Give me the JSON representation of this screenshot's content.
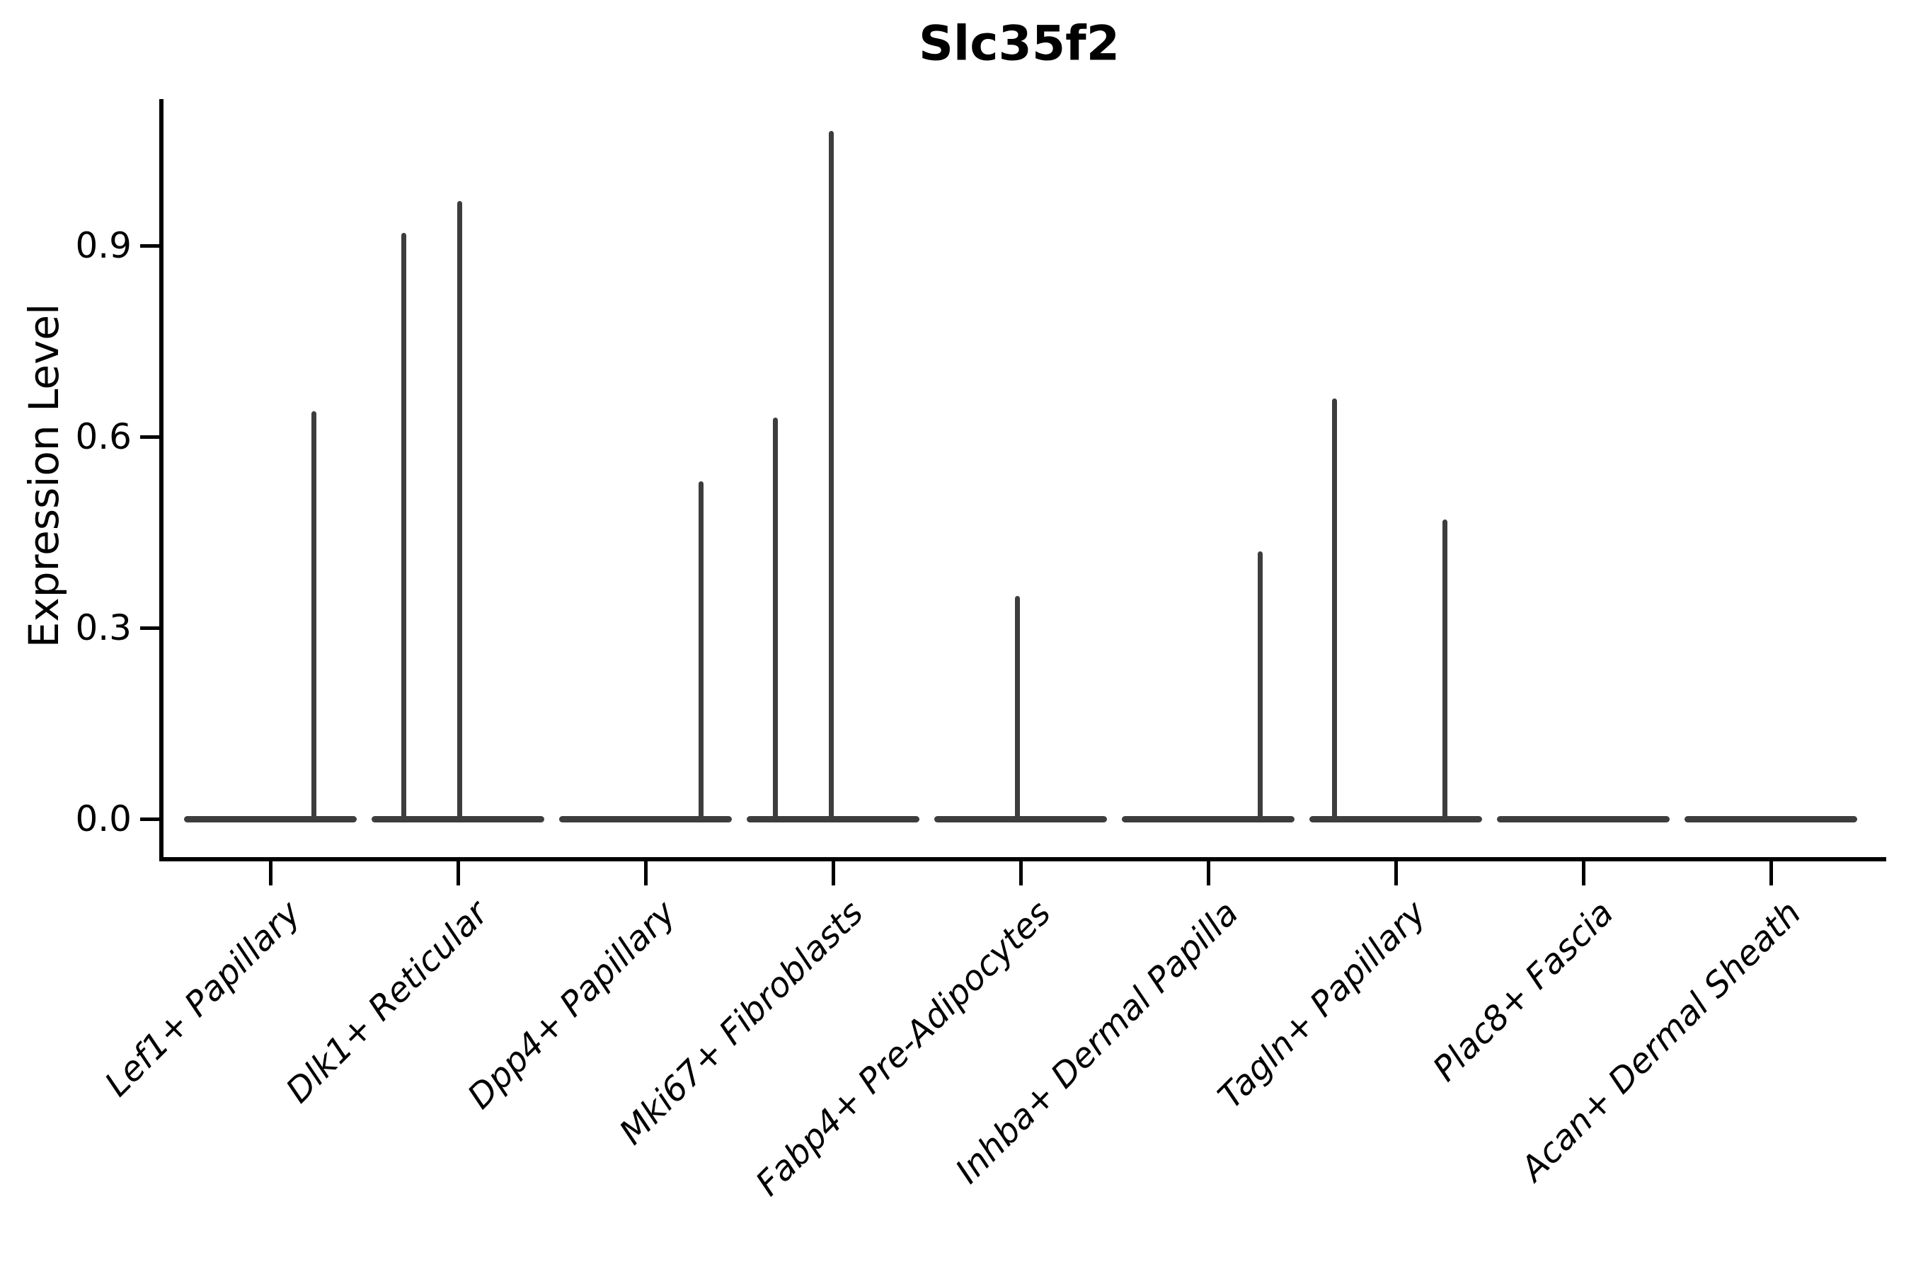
{
  "figure": {
    "background": "#ffffff",
    "axis_color": "#000000",
    "violin_color": "#3d3d3d"
  },
  "chart_data": {
    "type": "violin",
    "title": "Slc35f2",
    "xlabel": "",
    "ylabel": "Expression Level",
    "legend": "none",
    "grid": false,
    "ylim": [
      -0.06,
      1.13
    ],
    "yticks": [
      {
        "label": "0.0",
        "value": 0.0
      },
      {
        "label": "0.3",
        "value": 0.3
      },
      {
        "label": "0.6",
        "value": 0.6
      },
      {
        "label": "0.9",
        "value": 0.9
      }
    ],
    "categories": [
      "Lef1+ Papillary",
      "Dlk1+ Reticular",
      "Dpp4+ Papillary",
      "Mki67+ Fibroblasts",
      "Fabp4+ Pre-Adipocytes",
      "Inhba+ Dermal Papilla",
      "Tagln+ Papillary",
      "Plac8+ Fascia",
      "Acan+ Dermal Sheath"
    ],
    "violins": [
      {
        "category": "Lef1+ Papillary",
        "bulk_at_zero": true,
        "max_expression": 0.64,
        "spikes": [
          {
            "offset": 0.5,
            "value": 0.64
          }
        ]
      },
      {
        "category": "Dlk1+ Reticular",
        "bulk_at_zero": true,
        "max_expression": 0.97,
        "spikes": [
          {
            "offset": -0.63,
            "value": 0.92
          },
          {
            "offset": 0.02,
            "value": 0.97
          }
        ]
      },
      {
        "category": "Dpp4+ Papillary",
        "bulk_at_zero": true,
        "max_expression": 0.53,
        "spikes": [
          {
            "offset": 0.64,
            "value": 0.53
          }
        ]
      },
      {
        "category": "Mki67+ Fibroblasts",
        "bulk_at_zero": true,
        "max_expression": 1.08,
        "spikes": [
          {
            "offset": -0.67,
            "value": 0.63
          },
          {
            "offset": -0.02,
            "value": 1.08
          }
        ]
      },
      {
        "category": "Fabp4+ Pre-Adipocytes",
        "bulk_at_zero": true,
        "max_expression": 0.35,
        "spikes": [
          {
            "offset": -0.04,
            "value": 0.35
          }
        ]
      },
      {
        "category": "Inhba+ Dermal Papilla",
        "bulk_at_zero": true,
        "max_expression": 0.42,
        "spikes": [
          {
            "offset": 0.6,
            "value": 0.42
          }
        ]
      },
      {
        "category": "Tagln+ Papillary",
        "bulk_at_zero": true,
        "max_expression": 0.66,
        "spikes": [
          {
            "offset": -0.71,
            "value": 0.66
          },
          {
            "offset": 0.57,
            "value": 0.47
          }
        ]
      },
      {
        "category": "Plac8+ Fascia",
        "bulk_at_zero": true,
        "max_expression": 0.0,
        "spikes": []
      },
      {
        "category": "Acan+ Dermal Sheath",
        "bulk_at_zero": true,
        "max_expression": 0.0,
        "spikes": []
      }
    ]
  }
}
